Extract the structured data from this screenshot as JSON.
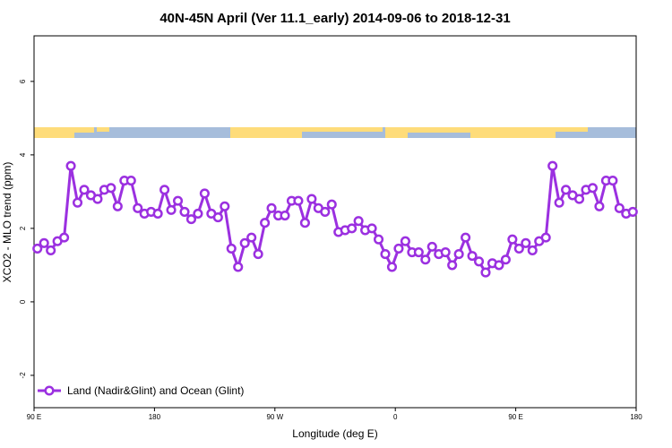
{
  "chart_data": {
    "type": "line",
    "title": "40N-45N April (Ver 11.1_early)   2014-09-06 to 2018-12-31",
    "x_label": "Longitude (deg E)",
    "y_label": "XCO2 - MLO trend (ppm)",
    "xlim": [
      90,
      540
    ],
    "ylim": [
      -2.88,
      7.24
    ],
    "xticks": [
      {
        "value": 90,
        "label": "90 E"
      },
      {
        "value": 180,
        "label": "180"
      },
      {
        "value": 270,
        "label": "90 W"
      },
      {
        "value": 360,
        "label": "0"
      },
      {
        "value": 450,
        "label": "90 E"
      },
      {
        "value": 540,
        "label": "180"
      }
    ],
    "yticks": [
      -2,
      0,
      2,
      4,
      6
    ],
    "legend": "bottom-left",
    "x": [
      92.5,
      97.5,
      102.5,
      107.5,
      112.5,
      117.5,
      122.5,
      127.5,
      132.5,
      137.5,
      142.5,
      147.5,
      152.5,
      157.5,
      162.5,
      167.5,
      172.5,
      177.5,
      182.5,
      187.5,
      192.5,
      197.5,
      202.5,
      207.5,
      212.5,
      217.5,
      222.5,
      227.5,
      232.5,
      237.5,
      242.5,
      247.5,
      252.5,
      257.5,
      262.5,
      267.5,
      272.5,
      277.5,
      282.5,
      287.5,
      292.5,
      297.5,
      302.5,
      307.5,
      312.5,
      317.5,
      322.5,
      327.5,
      332.5,
      337.5,
      342.5,
      347.5,
      352.5,
      357.5,
      362.5,
      367.5,
      372.5,
      377.5,
      382.5,
      387.5,
      392.5,
      397.5,
      402.5,
      407.5,
      412.5,
      417.5,
      422.5,
      427.5,
      432.5,
      437.5,
      442.5,
      447.5,
      452.5,
      457.5,
      462.5,
      467.5,
      472.5,
      477.5,
      482.5,
      487.5,
      492.5,
      497.5,
      502.5,
      507.5,
      512.5,
      517.5,
      522.5,
      527.5,
      532.5,
      537.5
    ],
    "series": [
      {
        "name": "Land (Nadir&Glint) and Ocean (Glint)",
        "color": "#9b30e0",
        "values": [
          1.45,
          1.6,
          1.4,
          1.65,
          1.75,
          3.7,
          2.7,
          3.05,
          2.9,
          2.8,
          3.05,
          3.1,
          2.6,
          3.3,
          3.3,
          2.55,
          2.4,
          2.45,
          2.4,
          3.05,
          2.5,
          2.75,
          2.45,
          2.25,
          2.4,
          2.95,
          2.4,
          2.3,
          2.6,
          1.45,
          0.95,
          1.6,
          1.75,
          1.3,
          2.15,
          2.55,
          2.35,
          2.35,
          2.75,
          2.75,
          2.15,
          2.8,
          2.55,
          2.45,
          2.65,
          1.9,
          1.95,
          2.0,
          2.2,
          1.95,
          2.0,
          1.7,
          1.3,
          0.95,
          1.45,
          1.65,
          1.35,
          1.35,
          1.15,
          1.5,
          1.3,
          1.35,
          1.0,
          1.3,
          1.75,
          1.25,
          1.1,
          0.8,
          1.05,
          1.0,
          1.15,
          1.7,
          1.45,
          1.6,
          1.4,
          1.65,
          1.75,
          3.7,
          2.7,
          3.05,
          2.9,
          2.8,
          3.05,
          3.1,
          2.6,
          3.3,
          3.3,
          2.55,
          2.4,
          2.45
        ]
      }
    ]
  }
}
